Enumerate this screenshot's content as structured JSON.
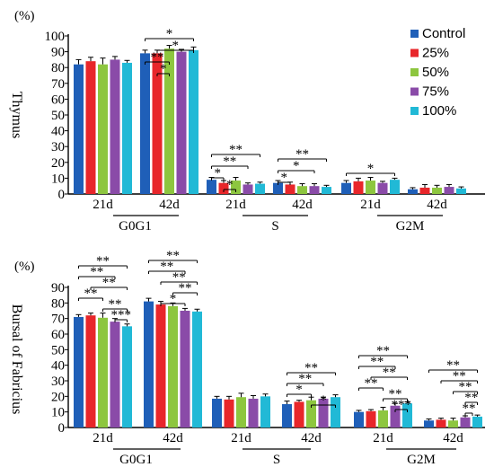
{
  "colors": {
    "series": [
      "#1f5fb8",
      "#e8262a",
      "#8dc63f",
      "#8a4ba8",
      "#21b9d6"
    ],
    "axis": "#000000"
  },
  "chart_data": [
    {
      "type": "bar",
      "panel": "top",
      "ylabel": "Thymus",
      "unit": "(%)",
      "ylim": [
        0,
        100
      ],
      "yticks": [
        0,
        10,
        20,
        30,
        40,
        50,
        60,
        70,
        80,
        90,
        100
      ],
      "groups": [
        "G0G1",
        "S",
        "G2M"
      ],
      "subgroups": [
        "21d",
        "42d"
      ],
      "legend": {
        "placement": "top-right",
        "entries": [
          "Control",
          "25%",
          "50%",
          "75%",
          "100%"
        ]
      },
      "series": [
        {
          "name": "Control",
          "values": [
            82,
            89,
            9,
            7,
            7,
            3
          ],
          "errors": [
            3,
            2,
            1.5,
            1.5,
            1.5,
            1
          ]
        },
        {
          "name": "25%",
          "values": [
            84,
            89,
            7,
            6,
            8,
            4
          ],
          "errors": [
            2.5,
            2,
            1.5,
            1.5,
            2,
            2
          ]
        },
        {
          "name": "50%",
          "values": [
            82,
            92,
            8.5,
            5,
            8.5,
            4
          ],
          "errors": [
            4,
            2,
            2,
            1.5,
            2,
            1.5
          ]
        },
        {
          "name": "75%",
          "values": [
            85,
            90,
            6,
            5,
            7,
            4.5
          ],
          "errors": [
            2,
            1.5,
            1,
            1.5,
            1,
            1.5
          ]
        },
        {
          "name": "100%",
          "values": [
            83,
            91,
            6.5,
            4.5,
            9,
            3.5
          ],
          "errors": [
            1.5,
            2,
            1,
            1,
            1,
            1
          ]
        }
      ],
      "significance": [
        {
          "sub": 1,
          "from": 0,
          "to": 4,
          "label": "*"
        },
        {
          "sub": 1,
          "from": 1,
          "to": 4,
          "label": "*"
        },
        {
          "sub": 1,
          "from": 0,
          "to": 2,
          "label": "**"
        },
        {
          "sub": 1,
          "from": 1,
          "to": 2,
          "label": "*"
        },
        {
          "sub": 2,
          "from": 0,
          "to": 4,
          "label": "**"
        },
        {
          "sub": 2,
          "from": 0,
          "to": 3,
          "label": "**"
        },
        {
          "sub": 2,
          "from": 0,
          "to": 1,
          "label": "*"
        },
        {
          "sub": 2,
          "from": 1,
          "to": 2,
          "label": "*"
        },
        {
          "sub": 3,
          "from": 0,
          "to": 4,
          "label": "**"
        },
        {
          "sub": 3,
          "from": 0,
          "to": 3,
          "label": "*"
        },
        {
          "sub": 3,
          "from": 0,
          "to": 1,
          "label": "*"
        },
        {
          "sub": 4,
          "from": 0,
          "to": 4,
          "label": "*"
        }
      ]
    },
    {
      "type": "bar",
      "panel": "bottom",
      "ylabel": "Bursal of Fabricius",
      "unit": "(%)",
      "ylim": [
        0,
        90
      ],
      "yticks": [
        0,
        10,
        20,
        30,
        40,
        50,
        60,
        70,
        80,
        90
      ],
      "groups": [
        "G0G1",
        "S",
        "G2M"
      ],
      "subgroups": [
        "21d",
        "42d"
      ],
      "series": [
        {
          "name": "Control",
          "values": [
            71,
            81,
            18.5,
            15,
            10,
            4.5
          ],
          "errors": [
            1.5,
            2,
            1.5,
            2,
            1,
            1
          ]
        },
        {
          "name": "25%",
          "values": [
            72,
            79,
            18,
            16.5,
            10.5,
            5
          ],
          "errors": [
            1.5,
            2,
            2,
            1,
            1,
            1
          ]
        },
        {
          "name": "50%",
          "values": [
            70.5,
            78,
            19.5,
            17.5,
            11,
            4.5
          ],
          "errors": [
            3,
            2,
            2.5,
            2,
            2,
            1.5
          ]
        },
        {
          "name": "75%",
          "values": [
            68,
            75,
            18.5,
            18.5,
            14,
            6.5
          ],
          "errors": [
            2,
            1.5,
            2,
            1,
            1.5,
            1
          ]
        },
        {
          "name": "100%",
          "values": [
            65,
            74.5,
            20,
            19.5,
            15.5,
            7
          ],
          "errors": [
            1.5,
            1.5,
            1.5,
            1.5,
            1,
            1
          ]
        }
      ],
      "significance": [
        {
          "sub": 0,
          "from": 0,
          "to": 4,
          "label": "**"
        },
        {
          "sub": 0,
          "from": 0,
          "to": 3,
          "label": "**"
        },
        {
          "sub": 0,
          "from": 1,
          "to": 4,
          "label": "**"
        },
        {
          "sub": 0,
          "from": 0,
          "to": 2,
          "label": "**"
        },
        {
          "sub": 0,
          "from": 2,
          "to": 4,
          "label": "**"
        },
        {
          "sub": 0,
          "from": 3,
          "to": 4,
          "label": "***"
        },
        {
          "sub": 1,
          "from": 0,
          "to": 4,
          "label": "**"
        },
        {
          "sub": 1,
          "from": 0,
          "to": 3,
          "label": "**"
        },
        {
          "sub": 1,
          "from": 1,
          "to": 4,
          "label": "**"
        },
        {
          "sub": 1,
          "from": 2,
          "to": 4,
          "label": "**"
        },
        {
          "sub": 1,
          "from": 1,
          "to": 3,
          "label": "*"
        },
        {
          "sub": 3,
          "from": 0,
          "to": 4,
          "label": "**"
        },
        {
          "sub": 3,
          "from": 0,
          "to": 3,
          "label": "**"
        },
        {
          "sub": 3,
          "from": 0,
          "to": 2,
          "label": "*"
        },
        {
          "sub": 3,
          "from": 2,
          "to": 4,
          "label": "*"
        },
        {
          "sub": 4,
          "from": 0,
          "to": 4,
          "label": "**"
        },
        {
          "sub": 4,
          "from": 0,
          "to": 3,
          "label": "**"
        },
        {
          "sub": 4,
          "from": 1,
          "to": 4,
          "label": "**"
        },
        {
          "sub": 4,
          "from": 0,
          "to": 2,
          "label": "**"
        },
        {
          "sub": 4,
          "from": 2,
          "to": 4,
          "label": "**"
        },
        {
          "sub": 4,
          "from": 3,
          "to": 4,
          "label": "***"
        },
        {
          "sub": 5,
          "from": 0,
          "to": 4,
          "label": "**"
        },
        {
          "sub": 5,
          "from": 1,
          "to": 4,
          "label": "**"
        },
        {
          "sub": 5,
          "from": 2,
          "to": 4,
          "label": "**"
        },
        {
          "sub": 5,
          "from": 3,
          "to": 4,
          "label": "**"
        },
        {
          "sub": 5,
          "from": 3,
          "to": 3,
          "label": "**"
        }
      ]
    }
  ]
}
